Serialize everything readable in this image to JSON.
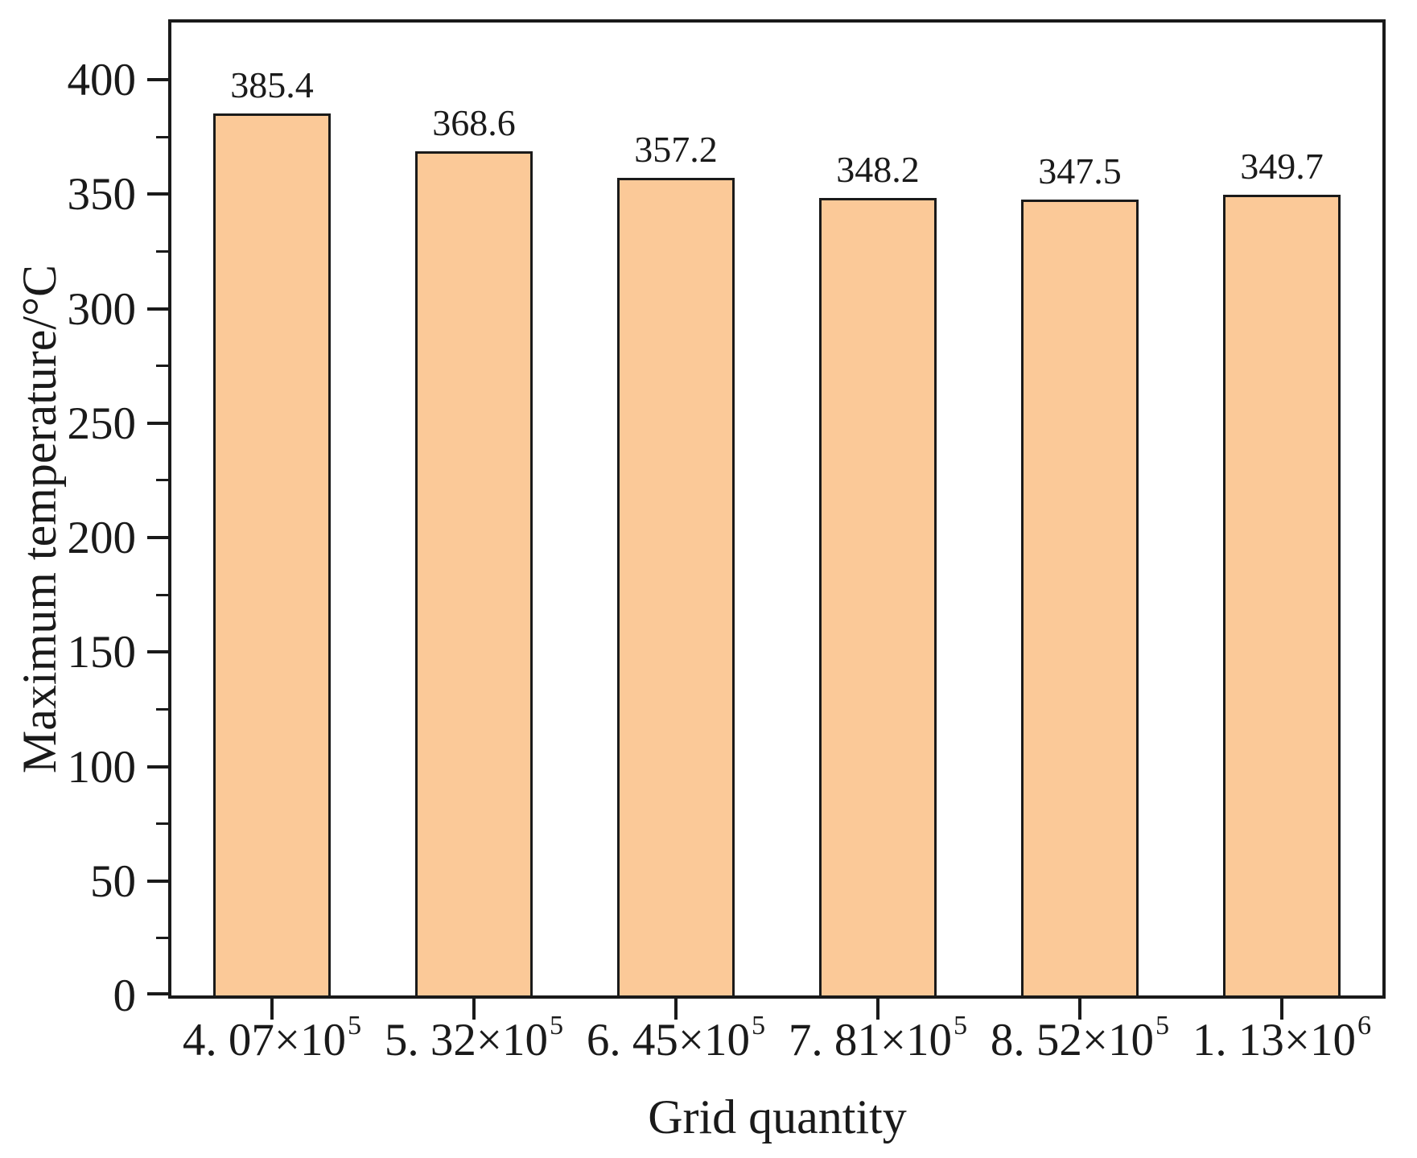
{
  "chart_data": {
    "type": "bar",
    "title": "",
    "xlabel": "Grid quantity",
    "ylabel": "Maximum temperature/°C",
    "categories": [
      {
        "text": "4. 07×10",
        "sup": "5"
      },
      {
        "text": "5. 32×10",
        "sup": "5"
      },
      {
        "text": "6. 45×10",
        "sup": "5"
      },
      {
        "text": "7. 81×10",
        "sup": "5"
      },
      {
        "text": "8. 52×10",
        "sup": "5"
      },
      {
        "text": "1. 13×10",
        "sup": "6"
      }
    ],
    "values": [
      385.4,
      368.6,
      357.2,
      348.2,
      347.5,
      349.7
    ],
    "value_labels": [
      "385.4",
      "368.6",
      "357.2",
      "348.2",
      "347.5",
      "349.7"
    ],
    "ylim": [
      0,
      425
    ],
    "y_major_ticks": [
      0,
      50,
      100,
      150,
      200,
      250,
      300,
      350,
      400
    ],
    "y_minor_interval": 25,
    "grid": false,
    "legend_position": "none",
    "bar_color": "#fbc998",
    "bar_border_color": "#1a1a1a",
    "axis_color": "#1a1a1a",
    "text_color": "#1a1a1a",
    "background_color": "#ffffff"
  }
}
